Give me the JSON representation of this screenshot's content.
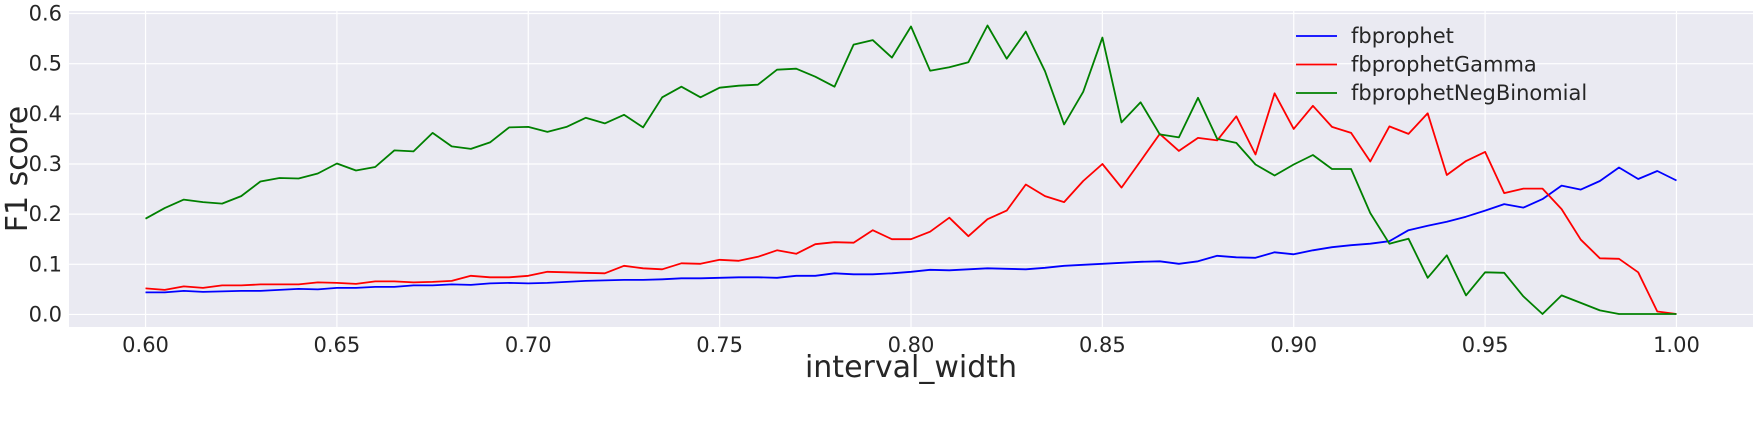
{
  "chart_data": {
    "type": "line",
    "title": "",
    "xlabel": "interval_width",
    "ylabel": "F1 score",
    "xlim": [
      0.58,
      1.02
    ],
    "ylim": [
      -0.025,
      0.605
    ],
    "grid": true,
    "legend_position": "top-right",
    "background": "#eaeaf2",
    "x_ticks": [
      0.6,
      0.65,
      0.7,
      0.75,
      0.8,
      0.85,
      0.9,
      0.95,
      1.0
    ],
    "x_tick_labels": [
      "0.60",
      "0.65",
      "0.70",
      "0.75",
      "0.80",
      "0.85",
      "0.90",
      "0.95",
      "1.00"
    ],
    "y_ticks": [
      0.0,
      0.1,
      0.2,
      0.3,
      0.4,
      0.5,
      0.6
    ],
    "y_tick_labels": [
      "0.0",
      "0.1",
      "0.2",
      "0.3",
      "0.4",
      "0.5",
      "0.6"
    ],
    "x": [
      0.6,
      0.605,
      0.61,
      0.615,
      0.62,
      0.625,
      0.63,
      0.635,
      0.64,
      0.645,
      0.65,
      0.655,
      0.66,
      0.665,
      0.67,
      0.675,
      0.68,
      0.685,
      0.69,
      0.695,
      0.7,
      0.705,
      0.71,
      0.715,
      0.72,
      0.725,
      0.73,
      0.735,
      0.74,
      0.745,
      0.75,
      0.755,
      0.76,
      0.765,
      0.77,
      0.775,
      0.78,
      0.785,
      0.79,
      0.795,
      0.8,
      0.805,
      0.81,
      0.815,
      0.82,
      0.825,
      0.83,
      0.835,
      0.84,
      0.845,
      0.85,
      0.855,
      0.86,
      0.865,
      0.87,
      0.875,
      0.88,
      0.885,
      0.89,
      0.895,
      0.9,
      0.905,
      0.91,
      0.915,
      0.92,
      0.925,
      0.93,
      0.935,
      0.94,
      0.945,
      0.95,
      0.955,
      0.96,
      0.965,
      0.97,
      0.975,
      0.98,
      0.985,
      0.99,
      0.995,
      1.0
    ],
    "series": [
      {
        "name": "fbprophet",
        "color": "#0000ff",
        "values": [
          0.044,
          0.044,
          0.047,
          0.045,
          0.046,
          0.047,
          0.047,
          0.049,
          0.051,
          0.05,
          0.053,
          0.053,
          0.055,
          0.055,
          0.058,
          0.058,
          0.06,
          0.059,
          0.062,
          0.063,
          0.062,
          0.063,
          0.065,
          0.067,
          0.068,
          0.069,
          0.069,
          0.07,
          0.072,
          0.072,
          0.073,
          0.074,
          0.074,
          0.073,
          0.077,
          0.077,
          0.082,
          0.08,
          0.08,
          0.082,
          0.085,
          0.089,
          0.088,
          0.09,
          0.092,
          0.091,
          0.09,
          0.093,
          0.097,
          0.099,
          0.101,
          0.103,
          0.105,
          0.106,
          0.101,
          0.106,
          0.117,
          0.114,
          0.113,
          0.124,
          0.12,
          0.128,
          0.134,
          0.138,
          0.141,
          0.146,
          0.168,
          0.177,
          0.185,
          0.195,
          0.207,
          0.22,
          0.213,
          0.23,
          0.257,
          0.249,
          0.266,
          0.293,
          0.27,
          0.286,
          0.267
        ]
      },
      {
        "name": "fbprophetGamma",
        "color": "#ff0000",
        "values": [
          0.052,
          0.049,
          0.056,
          0.053,
          0.058,
          0.058,
          0.06,
          0.06,
          0.06,
          0.064,
          0.063,
          0.061,
          0.066,
          0.066,
          0.064,
          0.065,
          0.067,
          0.077,
          0.074,
          0.074,
          0.077,
          0.085,
          0.084,
          0.083,
          0.082,
          0.097,
          0.092,
          0.09,
          0.102,
          0.101,
          0.109,
          0.107,
          0.115,
          0.128,
          0.121,
          0.14,
          0.144,
          0.143,
          0.168,
          0.15,
          0.15,
          0.165,
          0.193,
          0.156,
          0.19,
          0.207,
          0.259,
          0.236,
          0.224,
          0.266,
          0.3,
          0.253,
          0.306,
          0.36,
          0.326,
          0.352,
          0.347,
          0.395,
          0.319,
          0.441,
          0.37,
          0.416,
          0.374,
          0.362,
          0.305,
          0.375,
          0.36,
          0.401,
          0.278,
          0.306,
          0.324,
          0.242,
          0.251,
          0.251,
          0.21,
          0.149,
          0.112,
          0.111,
          0.084,
          0.006,
          0.001
        ]
      },
      {
        "name": "fbprophetNegBinomial",
        "color": "#008000",
        "values": [
          0.191,
          0.212,
          0.229,
          0.224,
          0.221,
          0.236,
          0.265,
          0.272,
          0.271,
          0.281,
          0.301,
          0.287,
          0.294,
          0.327,
          0.325,
          0.362,
          0.335,
          0.33,
          0.343,
          0.373,
          0.374,
          0.364,
          0.374,
          0.392,
          0.381,
          0.398,
          0.373,
          0.433,
          0.454,
          0.433,
          0.452,
          0.456,
          0.458,
          0.488,
          0.49,
          0.474,
          0.454,
          0.538,
          0.547,
          0.512,
          0.574,
          0.486,
          0.493,
          0.503,
          0.576,
          0.51,
          0.564,
          0.485,
          0.379,
          0.444,
          0.552,
          0.383,
          0.423,
          0.359,
          0.353,
          0.432,
          0.35,
          0.342,
          0.299,
          0.277,
          0.299,
          0.318,
          0.29,
          0.29,
          0.202,
          0.141,
          0.151,
          0.073,
          0.118,
          0.038,
          0.084,
          0.083,
          0.036,
          0.001,
          0.038,
          0.023,
          0.008,
          0.001,
          0.001,
          0.001,
          0.001
        ]
      }
    ]
  }
}
